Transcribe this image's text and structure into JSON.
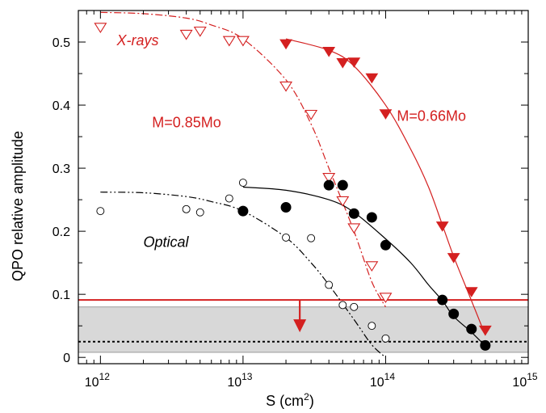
{
  "chart_data": {
    "type": "scatter",
    "x_scale": "log",
    "xlabel": "S (cm",
    "xlabel_sup": "2",
    "xlabel_end": ")",
    "ylabel": "QPO relative amplitude",
    "xlim": [
      700000000000.0,
      1000000000000000.0
    ],
    "ylim": [
      -0.01,
      0.55
    ],
    "grid": false,
    "x_ticks": [
      {
        "value": 1000000000000.0,
        "base": "10",
        "exp": "12"
      },
      {
        "value": 10000000000000.0,
        "base": "10",
        "exp": "13"
      },
      {
        "value": 100000000000000.0,
        "base": "10",
        "exp": "14"
      },
      {
        "value": 1000000000000000.0,
        "base": "10",
        "exp": "15"
      }
    ],
    "y_ticks": [
      {
        "value": 0,
        "label": "0"
      },
      {
        "value": 0.1,
        "label": "0.1"
      },
      {
        "value": 0.2,
        "label": "0.2"
      },
      {
        "value": 0.3,
        "label": "0.3"
      },
      {
        "value": 0.4,
        "label": "0.4"
      },
      {
        "value": 0.5,
        "label": "0.5"
      }
    ],
    "colors": {
      "xray": "#d42020",
      "optical": "#000000",
      "band": "#d8d8d8"
    },
    "annotations": [
      {
        "text": "X-rays",
        "x": 1300000000000.0,
        "y": 0.495,
        "color": "#d42020",
        "italic": true
      },
      {
        "text": "M=0.85Mo",
        "x": 2300000000000.0,
        "y": 0.365,
        "color": "#d42020",
        "italic": false
      },
      {
        "text": "M=0.66Mo",
        "x": 120000000000000.0,
        "y": 0.375,
        "color": "#d42020",
        "italic": false
      },
      {
        "text": "Optical",
        "x": 2000000000000.0,
        "y": 0.175,
        "color": "#000000",
        "italic": true
      }
    ],
    "series": [
      {
        "marker": "triangle-down-open",
        "color": "#d42020",
        "x": [
          1000000000000.0,
          4000000000000.0,
          5000000000000.0,
          8000000000000.0,
          10000000000000.0,
          20000000000000.0,
          30000000000000.0,
          40000000000000.0,
          50000000000000.0,
          60000000000000.0,
          80000000000000.0,
          100000000000000.0
        ],
        "y": [
          0.523,
          0.512,
          0.517,
          0.502,
          0.502,
          0.43,
          0.385,
          0.285,
          0.248,
          0.205,
          0.145,
          0.095
        ]
      },
      {
        "marker": "triangle-down-filled",
        "color": "#d42020",
        "x": [
          20000000000000.0,
          40000000000000.0,
          50000000000000.0,
          60000000000000.0,
          80000000000000.0,
          100000000000000.0,
          250000000000000.0,
          300000000000000.0,
          400000000000000.0,
          500000000000000.0
        ],
        "y": [
          0.497,
          0.485,
          0.467,
          0.468,
          0.443,
          0.386,
          0.208,
          0.158,
          0.104,
          0.043
        ]
      },
      {
        "marker": "circle-open",
        "color": "#000000",
        "x": [
          1000000000000.0,
          4000000000000.0,
          5000000000000.0,
          8000000000000.0,
          10000000000000.0,
          20000000000000.0,
          30000000000000.0,
          40000000000000.0,
          50000000000000.0,
          60000000000000.0,
          80000000000000.0,
          100000000000000.0
        ],
        "y": [
          0.232,
          0.235,
          0.23,
          0.252,
          0.277,
          0.19,
          0.189,
          0.115,
          0.083,
          0.08,
          0.05,
          0.03
        ]
      },
      {
        "marker": "circle-filled",
        "color": "#000000",
        "x": [
          10000000000000.0,
          20000000000000.0,
          40000000000000.0,
          50000000000000.0,
          60000000000000.0,
          80000000000000.0,
          100000000000000.0,
          250000000000000.0,
          300000000000000.0,
          400000000000000.0,
          500000000000000.0
        ],
        "y": [
          0.232,
          0.238,
          0.273,
          0.273,
          0.228,
          0.222,
          0.178,
          0.091,
          0.069,
          0.045,
          0.019
        ]
      }
    ],
    "curves": [
      {
        "style": "dash-dot",
        "color": "#d42020",
        "x": [
          1000000000000.0,
          2000000000000.0,
          4000000000000.0,
          6000000000000.0,
          10000000000000.0,
          20000000000000.0,
          30000000000000.0,
          40000000000000.0,
          60000000000000.0,
          80000000000000.0,
          100000000000000.0
        ],
        "y": [
          0.547,
          0.545,
          0.538,
          0.527,
          0.505,
          0.44,
          0.37,
          0.3,
          0.2,
          0.12,
          0.08
        ]
      },
      {
        "style": "solid",
        "color": "#d42020",
        "x": [
          20000000000000.0,
          40000000000000.0,
          60000000000000.0,
          100000000000000.0,
          150000000000000.0,
          200000000000000.0,
          250000000000000.0,
          300000000000000.0,
          400000000000000.0,
          500000000000000.0
        ],
        "y": [
          0.505,
          0.487,
          0.462,
          0.4,
          0.33,
          0.27,
          0.21,
          0.16,
          0.09,
          0.035
        ]
      },
      {
        "style": "dash-dot-dot",
        "color": "#000000",
        "x": [
          1000000000000.0,
          2000000000000.0,
          4000000000000.0,
          6000000000000.0,
          10000000000000.0,
          20000000000000.0,
          30000000000000.0,
          40000000000000.0,
          60000000000000.0,
          80000000000000.0,
          100000000000000.0
        ],
        "y": [
          0.262,
          0.261,
          0.255,
          0.247,
          0.232,
          0.19,
          0.15,
          0.115,
          0.06,
          0.02,
          0.0
        ]
      },
      {
        "style": "solid",
        "color": "#000000",
        "x": [
          10000000000000.0,
          20000000000000.0,
          40000000000000.0,
          60000000000000.0,
          100000000000000.0,
          150000000000000.0,
          200000000000000.0,
          250000000000000.0,
          300000000000000.0,
          400000000000000.0,
          500000000000000.0
        ],
        "y": [
          0.27,
          0.265,
          0.25,
          0.23,
          0.188,
          0.15,
          0.115,
          0.09,
          0.065,
          0.04,
          0.018
        ]
      }
    ],
    "reference_lines": [
      {
        "y": 0.091,
        "color": "#d42020",
        "style": "solid"
      },
      {
        "y": 0.025,
        "color": "#000000",
        "style": "dotted"
      }
    ],
    "band": {
      "y0": 0.008,
      "y1": 0.08,
      "color": "#d8d8d8"
    },
    "upper_limit_arrow": {
      "x": 25000000000000.0,
      "y_from": 0.091,
      "y_to": 0.045,
      "color": "#d42020"
    }
  }
}
